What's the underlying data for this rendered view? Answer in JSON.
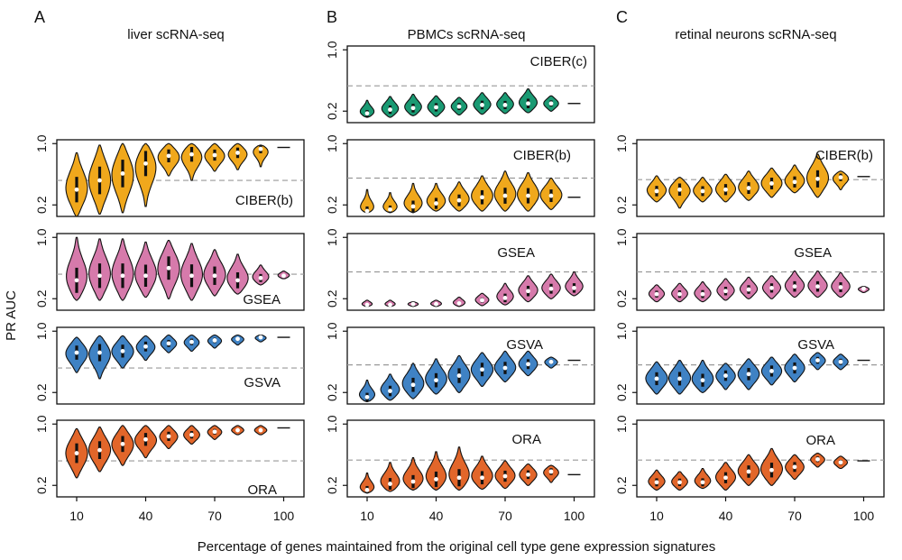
{
  "figure": {
    "y_axis_label": "PR AUC",
    "x_axis_label": "Percentage of genes maintained from the original cell type gene expression signatures"
  },
  "colors": {
    "CIBER(c)": "#1a9a73",
    "CIBER(b)": "#f0a81c",
    "GSEA": "#d67aab",
    "GSVA": "#3f82c4",
    "ORA": "#e2662a"
  },
  "chart_data": [
    {
      "type": "violin",
      "panel": "A",
      "column_title": "liver scRNA-seq",
      "method": "CIBER(b)",
      "x": [
        10,
        20,
        30,
        40,
        50,
        60,
        70,
        80,
        90,
        100
      ],
      "x_tick_labels": [
        "10",
        "40",
        "70",
        "100"
      ],
      "median": [
        0.4,
        0.52,
        0.61,
        0.74,
        0.84,
        0.86,
        0.85,
        0.88,
        0.93,
        0.95
      ],
      "min": [
        0.05,
        0.08,
        0.1,
        0.18,
        0.58,
        0.52,
        0.64,
        0.66,
        0.7,
        0.95
      ],
      "max": [
        0.88,
        0.98,
        1.0,
        1.0,
        1.0,
        1.0,
        1.0,
        1.0,
        0.98,
        0.95
      ],
      "reference_line": 0.52,
      "y_ticks": [
        "0.2",
        "1.0"
      ],
      "ylim": [
        0.05,
        1.05
      ]
    },
    {
      "type": "violin",
      "panel": "A",
      "method": "GSEA",
      "x": [
        10,
        20,
        30,
        40,
        50,
        60,
        70,
        80,
        90,
        100
      ],
      "x_tick_labels": [
        "10",
        "40",
        "70",
        "100"
      ],
      "median": [
        0.44,
        0.5,
        0.5,
        0.5,
        0.6,
        0.5,
        0.5,
        0.44,
        0.47,
        0.5
      ],
      "min": [
        0.18,
        0.18,
        0.18,
        0.22,
        0.2,
        0.18,
        0.24,
        0.26,
        0.38,
        0.46
      ],
      "max": [
        1.0,
        0.98,
        0.98,
        0.94,
        0.96,
        0.92,
        0.84,
        0.78,
        0.64,
        0.56
      ],
      "reference_line": 0.52,
      "y_ticks": [
        "0.2",
        "1.0"
      ],
      "ylim": [
        0.05,
        1.05
      ]
    },
    {
      "type": "violin",
      "panel": "A",
      "method": "GSVA",
      "x": [
        10,
        20,
        30,
        40,
        50,
        60,
        70,
        80,
        90,
        100
      ],
      "x_tick_labels": [
        "10",
        "40",
        "70",
        "100"
      ],
      "median": [
        0.72,
        0.72,
        0.74,
        0.8,
        0.84,
        0.86,
        0.88,
        0.9,
        0.92,
        0.92
      ],
      "min": [
        0.46,
        0.38,
        0.52,
        0.62,
        0.72,
        0.74,
        0.78,
        0.82,
        0.86,
        0.92
      ],
      "max": [
        0.92,
        0.94,
        0.94,
        0.94,
        0.95,
        0.95,
        0.95,
        0.95,
        0.95,
        0.92
      ],
      "reference_line": 0.52,
      "y_ticks": [
        "0.2",
        "1.0"
      ],
      "ylim": [
        0.05,
        1.05
      ]
    },
    {
      "type": "violin",
      "panel": "A",
      "method": "ORA",
      "x": [
        10,
        20,
        30,
        40,
        50,
        60,
        70,
        80,
        90,
        100
      ],
      "x_tick_labels": [
        "10",
        "40",
        "70",
        "100"
      ],
      "median": [
        0.62,
        0.66,
        0.74,
        0.8,
        0.84,
        0.86,
        0.9,
        0.92,
        0.92,
        0.95
      ],
      "min": [
        0.3,
        0.38,
        0.46,
        0.56,
        0.68,
        0.74,
        0.8,
        0.86,
        0.86,
        0.95
      ],
      "max": [
        0.94,
        0.96,
        0.98,
        0.98,
        0.98,
        0.98,
        0.98,
        0.98,
        0.98,
        0.95
      ],
      "reference_line": 0.52,
      "y_ticks": [
        "0.2",
        "1.0"
      ],
      "ylim": [
        0.05,
        1.05
      ]
    },
    {
      "type": "violin",
      "panel": "B",
      "column_title": "PBMCs scRNA-seq",
      "method": "CIBER(c)",
      "x": [
        10,
        20,
        30,
        40,
        50,
        60,
        70,
        80,
        90,
        100
      ],
      "x_tick_labels": [
        "10",
        "40",
        "70",
        "100"
      ],
      "median": [
        0.17,
        0.22,
        0.24,
        0.25,
        0.26,
        0.28,
        0.28,
        0.3,
        0.3,
        0.3
      ],
      "min": [
        0.12,
        0.12,
        0.14,
        0.13,
        0.15,
        0.16,
        0.17,
        0.18,
        0.2,
        0.3
      ],
      "max": [
        0.34,
        0.39,
        0.42,
        0.4,
        0.38,
        0.44,
        0.44,
        0.49,
        0.4,
        0.3
      ],
      "reference_line": 0.53,
      "y_ticks": [
        "0.2",
        "1.0"
      ],
      "ylim": [
        0.05,
        1.05
      ]
    },
    {
      "type": "violin",
      "panel": "B",
      "method": "CIBER(b)",
      "x": [
        10,
        20,
        30,
        40,
        50,
        60,
        70,
        80,
        90,
        100
      ],
      "x_tick_labels": [
        "10",
        "40",
        "70",
        "100"
      ],
      "median": [
        0.12,
        0.14,
        0.18,
        0.22,
        0.26,
        0.3,
        0.32,
        0.32,
        0.32,
        0.3
      ],
      "min": [
        0.1,
        0.1,
        0.1,
        0.12,
        0.12,
        0.12,
        0.12,
        0.12,
        0.14,
        0.3
      ],
      "max": [
        0.4,
        0.36,
        0.48,
        0.48,
        0.5,
        0.58,
        0.64,
        0.62,
        0.55,
        0.3
      ],
      "reference_line": 0.55,
      "y_ticks": [
        "0.2",
        "1.0"
      ],
      "ylim": [
        0.05,
        1.05
      ]
    },
    {
      "type": "violin",
      "panel": "B",
      "method": "GSEA",
      "x": [
        10,
        20,
        30,
        40,
        50,
        60,
        70,
        80,
        90,
        100
      ],
      "x_tick_labels": [
        "10",
        "40",
        "70",
        "100"
      ],
      "median": [
        0.12,
        0.12,
        0.13,
        0.13,
        0.14,
        0.18,
        0.21,
        0.3,
        0.33,
        0.34
      ],
      "min": [
        0.1,
        0.1,
        0.1,
        0.1,
        0.1,
        0.11,
        0.12,
        0.16,
        0.2,
        0.24
      ],
      "max": [
        0.18,
        0.18,
        0.16,
        0.18,
        0.22,
        0.27,
        0.4,
        0.5,
        0.52,
        0.55
      ],
      "reference_line": 0.55,
      "y_ticks": [
        "0.2",
        "1.0"
      ],
      "ylim": [
        0.05,
        1.05
      ]
    },
    {
      "type": "violin",
      "panel": "B",
      "method": "GSVA",
      "x": [
        10,
        20,
        30,
        40,
        50,
        60,
        70,
        80,
        90,
        100
      ],
      "x_tick_labels": [
        "10",
        "40",
        "70",
        "100"
      ],
      "median": [
        0.14,
        0.22,
        0.3,
        0.36,
        0.42,
        0.5,
        0.52,
        0.57,
        0.6,
        0.62
      ],
      "min": [
        0.08,
        0.1,
        0.12,
        0.18,
        0.2,
        0.28,
        0.34,
        0.42,
        0.52,
        0.62
      ],
      "max": [
        0.36,
        0.44,
        0.58,
        0.64,
        0.68,
        0.72,
        0.74,
        0.74,
        0.66,
        0.62
      ],
      "reference_line": 0.56,
      "y_ticks": [
        "0.2",
        "1.0"
      ],
      "ylim": [
        0.05,
        1.05
      ]
    },
    {
      "type": "violin",
      "panel": "B",
      "method": "ORA",
      "x": [
        10,
        20,
        30,
        40,
        50,
        60,
        70,
        80,
        90,
        100
      ],
      "x_tick_labels": [
        "10",
        "40",
        "70",
        "100"
      ],
      "median": [
        0.14,
        0.22,
        0.25,
        0.28,
        0.3,
        0.3,
        0.32,
        0.34,
        0.38,
        0.34
      ],
      "min": [
        0.1,
        0.12,
        0.14,
        0.14,
        0.14,
        0.15,
        0.16,
        0.2,
        0.24,
        0.34
      ],
      "max": [
        0.36,
        0.5,
        0.56,
        0.64,
        0.7,
        0.58,
        0.52,
        0.48,
        0.46,
        0.34
      ],
      "reference_line": 0.53,
      "y_ticks": [
        "0.2",
        "1.0"
      ],
      "ylim": [
        0.05,
        1.05
      ]
    },
    {
      "type": "violin",
      "panel": "C",
      "column_title": "retinal neurons scRNA-seq",
      "method": "CIBER(b)",
      "x": [
        10,
        20,
        30,
        40,
        50,
        60,
        70,
        80,
        90,
        100
      ],
      "x_tick_labels": [
        "10",
        "40",
        "70",
        "100"
      ],
      "median": [
        0.38,
        0.4,
        0.38,
        0.4,
        0.42,
        0.48,
        0.5,
        0.54,
        0.56,
        0.57
      ],
      "min": [
        0.24,
        0.16,
        0.24,
        0.24,
        0.26,
        0.3,
        0.36,
        0.3,
        0.4,
        0.57
      ],
      "max": [
        0.58,
        0.56,
        0.56,
        0.6,
        0.64,
        0.68,
        0.72,
        0.86,
        0.64,
        0.57
      ],
      "reference_line": 0.53,
      "y_ticks": [
        "0.2",
        "1.0"
      ],
      "ylim": [
        0.05,
        1.05
      ]
    },
    {
      "type": "violin",
      "panel": "C",
      "method": "GSEA",
      "x": [
        10,
        20,
        30,
        40,
        50,
        60,
        70,
        80,
        90,
        100
      ],
      "x_tick_labels": [
        "10",
        "40",
        "70",
        "100"
      ],
      "median": [
        0.26,
        0.26,
        0.26,
        0.3,
        0.32,
        0.34,
        0.36,
        0.36,
        0.35,
        0.33
      ],
      "min": [
        0.16,
        0.16,
        0.16,
        0.18,
        0.2,
        0.2,
        0.22,
        0.22,
        0.22,
        0.28
      ],
      "max": [
        0.38,
        0.4,
        0.42,
        0.46,
        0.48,
        0.5,
        0.56,
        0.56,
        0.54,
        0.36
      ],
      "reference_line": 0.55,
      "y_ticks": [
        "0.2",
        "1.0"
      ],
      "ylim": [
        0.05,
        1.05
      ]
    },
    {
      "type": "violin",
      "panel": "C",
      "method": "GSVA",
      "x": [
        10,
        20,
        30,
        40,
        50,
        60,
        70,
        80,
        90,
        100
      ],
      "x_tick_labels": [
        "10",
        "40",
        "70",
        "100"
      ],
      "median": [
        0.38,
        0.38,
        0.36,
        0.42,
        0.44,
        0.48,
        0.52,
        0.62,
        0.6,
        0.62
      ],
      "min": [
        0.18,
        0.18,
        0.2,
        0.24,
        0.24,
        0.3,
        0.34,
        0.5,
        0.5,
        0.62
      ],
      "max": [
        0.6,
        0.62,
        0.62,
        0.58,
        0.64,
        0.66,
        0.7,
        0.72,
        0.7,
        0.62
      ],
      "reference_line": 0.56,
      "y_ticks": [
        "0.2",
        "1.0"
      ],
      "ylim": [
        0.05,
        1.05
      ]
    },
    {
      "type": "violin",
      "panel": "C",
      "method": "ORA",
      "x": [
        10,
        20,
        30,
        40,
        50,
        60,
        70,
        80,
        90,
        100
      ],
      "x_tick_labels": [
        "10",
        "40",
        "70",
        "100"
      ],
      "median": [
        0.24,
        0.24,
        0.24,
        0.3,
        0.38,
        0.4,
        0.44,
        0.54,
        0.5,
        0.52
      ],
      "min": [
        0.14,
        0.14,
        0.16,
        0.14,
        0.2,
        0.2,
        0.28,
        0.44,
        0.42,
        0.52
      ],
      "max": [
        0.4,
        0.38,
        0.42,
        0.5,
        0.6,
        0.68,
        0.6,
        0.62,
        0.58,
        0.52
      ],
      "reference_line": 0.53,
      "y_ticks": [
        "0.2",
        "1.0"
      ],
      "ylim": [
        0.05,
        1.05
      ]
    }
  ]
}
